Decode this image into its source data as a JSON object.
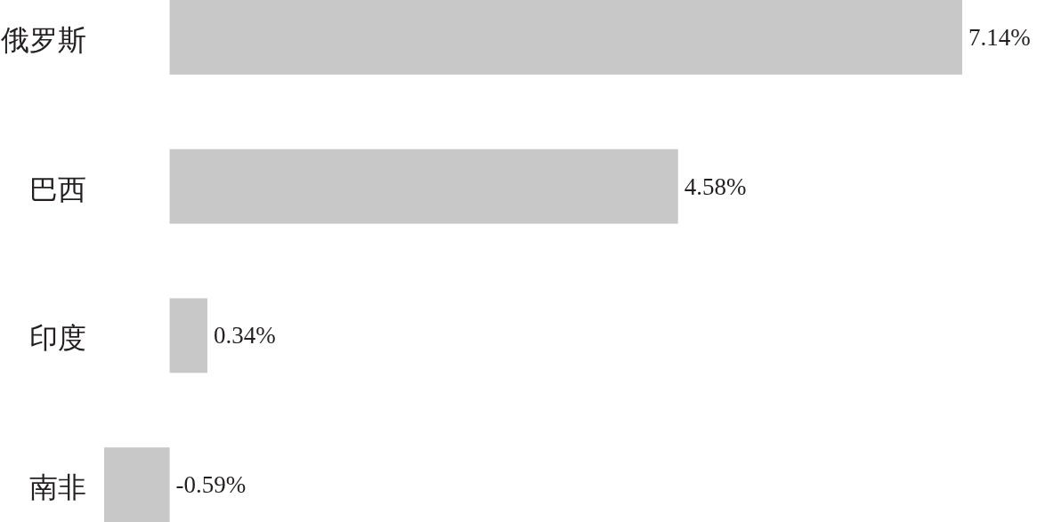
{
  "chart_data": {
    "type": "bar",
    "orientation": "horizontal",
    "categories": [
      "俄罗斯",
      "巴西",
      "印度",
      "南非"
    ],
    "values": [
      7.14,
      4.58,
      0.34,
      -0.59
    ],
    "color": "#c8c8c8",
    "value_labels": [
      "7.14%",
      "4.58%",
      "0.34%",
      "-0.59%"
    ],
    "grid": false
  }
}
